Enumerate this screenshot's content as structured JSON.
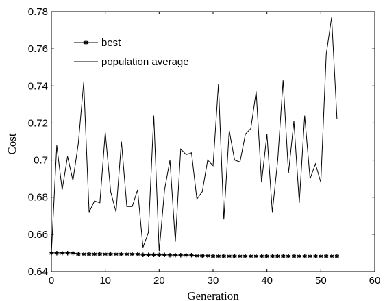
{
  "chart_data": {
    "type": "line",
    "title": "",
    "xlabel": "Generation",
    "ylabel": "Cost",
    "xlim": [
      0,
      60
    ],
    "ylim": [
      0.64,
      0.78
    ],
    "xticks": [
      "0",
      "10",
      "20",
      "30",
      "40",
      "50",
      "60"
    ],
    "yticks": [
      "0.64",
      "0.66",
      "0.68",
      "0.7",
      "0.72",
      "0.74",
      "0.76",
      "0.78"
    ],
    "grid": false,
    "legend_position": "top-left",
    "series": [
      {
        "name": "best",
        "marker": "star",
        "color": "#000000",
        "x": [
          0,
          1,
          2,
          3,
          4,
          5,
          6,
          7,
          8,
          9,
          10,
          11,
          12,
          13,
          14,
          15,
          16,
          17,
          18,
          19,
          20,
          21,
          22,
          23,
          24,
          25,
          26,
          27,
          28,
          29,
          30,
          31,
          32,
          33,
          34,
          35,
          36,
          37,
          38,
          39,
          40,
          41,
          42,
          43,
          44,
          45,
          46,
          47,
          48,
          49,
          50,
          51,
          52,
          53
        ],
        "values": [
          0.65,
          0.65,
          0.65,
          0.65,
          0.65,
          0.6495,
          0.6495,
          0.6495,
          0.6495,
          0.6495,
          0.6495,
          0.6495,
          0.6495,
          0.6495,
          0.6495,
          0.6495,
          0.6495,
          0.649,
          0.649,
          0.649,
          0.649,
          0.649,
          0.6488,
          0.6488,
          0.6488,
          0.6488,
          0.6488,
          0.6485,
          0.6485,
          0.6485,
          0.6483,
          0.6483,
          0.6483,
          0.6483,
          0.6483,
          0.6483,
          0.6483,
          0.6483,
          0.6483,
          0.6483,
          0.6483,
          0.6483,
          0.6483,
          0.6483,
          0.6483,
          0.6483,
          0.6483,
          0.6483,
          0.6483,
          0.6483,
          0.6483,
          0.6483,
          0.6483,
          0.6483
        ]
      },
      {
        "name": "population average",
        "marker": "none",
        "color": "#000000",
        "x": [
          0,
          1,
          2,
          3,
          4,
          5,
          6,
          7,
          8,
          9,
          10,
          11,
          12,
          13,
          14,
          15,
          16,
          17,
          18,
          19,
          20,
          21,
          22,
          23,
          24,
          25,
          26,
          27,
          28,
          29,
          30,
          31,
          32,
          33,
          34,
          35,
          36,
          37,
          38,
          39,
          40,
          41,
          42,
          43,
          44,
          45,
          46,
          47,
          48,
          49,
          50,
          51,
          52,
          53
        ],
        "values": [
          0.65,
          0.708,
          0.684,
          0.702,
          0.689,
          0.709,
          0.742,
          0.672,
          0.678,
          0.677,
          0.715,
          0.683,
          0.672,
          0.71,
          0.675,
          0.675,
          0.684,
          0.653,
          0.661,
          0.724,
          0.651,
          0.684,
          0.7,
          0.656,
          0.706,
          0.703,
          0.704,
          0.679,
          0.683,
          0.7,
          0.697,
          0.741,
          0.668,
          0.716,
          0.7,
          0.699,
          0.714,
          0.717,
          0.737,
          0.688,
          0.714,
          0.672,
          0.7,
          0.743,
          0.693,
          0.721,
          0.677,
          0.724,
          0.69,
          0.698,
          0.688,
          0.757,
          0.777,
          0.722
        ]
      }
    ]
  }
}
